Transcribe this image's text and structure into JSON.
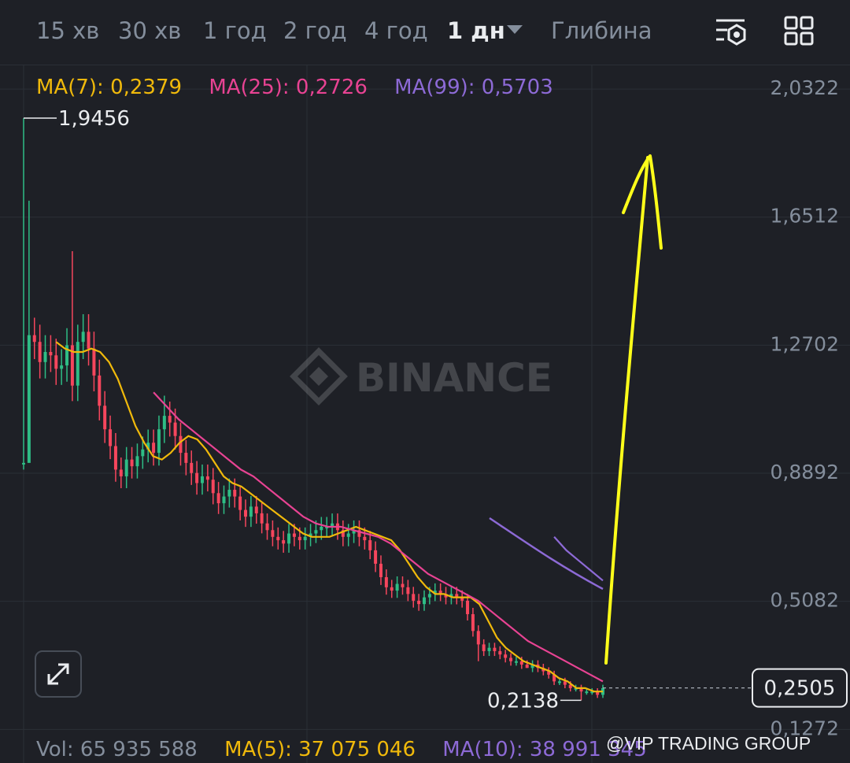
{
  "toolbar": {
    "timeframes": [
      "15 хв",
      "30 хв",
      "1 год",
      "2 год",
      "4 год",
      "1 дн"
    ],
    "active_timeframe": "1 дн",
    "depth_label": "Глибина"
  },
  "ma_legend": [
    {
      "text": "MA(7): 0,2379",
      "color": "#f0b90b"
    },
    {
      "text": "MA(25): 0,2726",
      "color": "#e84393"
    },
    {
      "text": "MA(99): 0,5703",
      "color": "#8d6ad6"
    }
  ],
  "volume_legend": [
    {
      "text": "Vol: 65 935 588",
      "color": "#848e9c"
    },
    {
      "text": "MA(5): 37 075 046",
      "color": "#f0b90b"
    },
    {
      "text": "MA(10): 38 991 345",
      "color": "#8d6ad6"
    }
  ],
  "watermark": "BINANCE",
  "overlay_credit": "@VIP TRADING GROUP",
  "colors": {
    "up": "#2ebd85",
    "down": "#f6465d",
    "ma7": "#f0b90b",
    "ma25": "#e84393",
    "ma99": "#8d6ad6",
    "annotation": "#ffff1a"
  },
  "chart_data": {
    "type": "candlestick",
    "y_ticks": [
      "2,0322",
      "1,6512",
      "1,2702",
      "0,8892",
      "0,5082",
      "0,1272"
    ],
    "y_tick_values": [
      2.0322,
      1.6512,
      1.2702,
      0.8892,
      0.5082,
      0.1272
    ],
    "ylim": [
      0.06,
      2.18
    ],
    "high_label": "1,9456",
    "high_value": 1.9456,
    "low_label": "0,2138",
    "low_value": 0.2138,
    "last_price_label": "0,2505",
    "last_price": 0.2505,
    "candles_count": 108,
    "close_series": [
      0.92,
      1.3,
      1.28,
      1.22,
      1.25,
      1.24,
      1.2,
      1.21,
      1.27,
      1.15,
      1.28,
      1.31,
      1.26,
      1.18,
      1.09,
      1.02,
      0.97,
      0.9,
      0.88,
      0.93,
      0.91,
      0.94,
      0.96,
      0.98,
      0.95,
      1.02,
      1.06,
      1.04,
      1.0,
      0.95,
      0.92,
      0.89,
      0.86,
      0.88,
      0.87,
      0.83,
      0.8,
      0.82,
      0.84,
      0.82,
      0.78,
      0.76,
      0.79,
      0.77,
      0.74,
      0.72,
      0.7,
      0.69,
      0.68,
      0.71,
      0.7,
      0.69,
      0.7,
      0.71,
      0.72,
      0.73,
      0.73,
      0.74,
      0.72,
      0.7,
      0.71,
      0.72,
      0.7,
      0.69,
      0.66,
      0.62,
      0.58,
      0.55,
      0.54,
      0.56,
      0.55,
      0.53,
      0.51,
      0.5,
      0.52,
      0.53,
      0.54,
      0.53,
      0.52,
      0.53,
      0.52,
      0.51,
      0.47,
      0.42,
      0.38,
      0.36,
      0.37,
      0.36,
      0.35,
      0.34,
      0.33,
      0.33,
      0.32,
      0.31,
      0.32,
      0.31,
      0.3,
      0.29,
      0.27,
      0.27,
      0.26,
      0.25,
      0.25,
      0.24,
      0.24,
      0.24,
      0.23,
      0.25
    ],
    "ma7_series": [
      1.28,
      1.26,
      1.25,
      1.25,
      1.26,
      1.25,
      1.22,
      1.17,
      1.1,
      1.03,
      0.98,
      0.94,
      0.93,
      0.95,
      0.98,
      1.0,
      0.99,
      0.96,
      0.92,
      0.88,
      0.86,
      0.85,
      0.83,
      0.81,
      0.79,
      0.77,
      0.75,
      0.73,
      0.71,
      0.7,
      0.7,
      0.7,
      0.71,
      0.72,
      0.73,
      0.72,
      0.71,
      0.7,
      0.69,
      0.66,
      0.62,
      0.58,
      0.55,
      0.53,
      0.53,
      0.52,
      0.52,
      0.52,
      0.5,
      0.45,
      0.4,
      0.37,
      0.35,
      0.33,
      0.32,
      0.31,
      0.3,
      0.28,
      0.27,
      0.25,
      0.25,
      0.24,
      0.24
    ],
    "ma25_series": [
      1.13,
      1.09,
      1.05,
      1.02,
      0.99,
      0.96,
      0.93,
      0.9,
      0.88,
      0.85,
      0.82,
      0.79,
      0.76,
      0.74,
      0.73,
      0.73,
      0.72,
      0.71,
      0.7,
      0.68,
      0.65,
      0.62,
      0.59,
      0.57,
      0.55,
      0.53,
      0.51,
      0.48,
      0.45,
      0.42,
      0.39,
      0.37,
      0.35,
      0.33,
      0.31,
      0.29,
      0.27
    ],
    "ma99_series": [
      0.7,
      0.66,
      0.63,
      0.6,
      0.57
    ]
  }
}
